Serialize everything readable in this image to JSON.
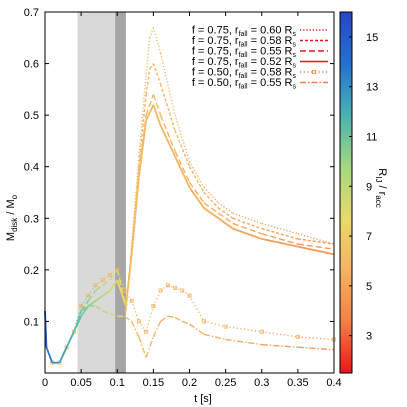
{
  "chart_data": {
    "type": "line",
    "xlabel": "t [s]",
    "ylabel": "M_disk / M_o",
    "xlim": [
      0,
      0.4
    ],
    "ylim": [
      0,
      0.7
    ],
    "xticks": [
      "0",
      "0.05",
      "0.1",
      "0.15",
      "0.2",
      "0.25",
      "0.3",
      "0.35",
      "0.4"
    ],
    "yticks": [
      "0.1",
      "0.2",
      "0.3",
      "0.4",
      "0.5",
      "0.6",
      "0.7"
    ],
    "grid": false,
    "legend_position": "top-right",
    "shaded_regions": [
      {
        "x": [
          0.045,
          0.097
        ],
        "color": "#d9d9d9"
      },
      {
        "x": [
          0.097,
          0.112
        ],
        "color": "#a6a6a6"
      }
    ],
    "colorbar": {
      "label": "R_IJ / r_acc",
      "ticks": [
        "3",
        "5",
        "7",
        "9",
        "11",
        "13",
        "15"
      ],
      "range": [
        1.5,
        16
      ],
      "colors": [
        "#e8171a",
        "#f38045",
        "#f5b364",
        "#e8da6a",
        "#a3d880",
        "#49b2b2",
        "#2371d0",
        "#2a45c7"
      ]
    },
    "series": [
      {
        "name": "f = 0.75, r_fall = 0.60 R_s",
        "legend_f": "f = 0.75, r",
        "legend_sub": "fall",
        "legend_r": " = 0.60 R",
        "legend_end": "s",
        "style": "dotted",
        "legend_color": "#e8171a",
        "x": [
          0.112,
          0.12,
          0.13,
          0.14,
          0.145,
          0.15,
          0.16,
          0.18,
          0.2,
          0.22,
          0.24,
          0.26,
          0.3,
          0.35,
          0.4
        ],
        "y": [
          0.12,
          0.25,
          0.42,
          0.58,
          0.65,
          0.67,
          0.62,
          0.5,
          0.41,
          0.36,
          0.33,
          0.31,
          0.29,
          0.27,
          0.25
        ]
      },
      {
        "name": "f = 0.75, r_fall = 0.58 R_s",
        "legend_f": "f = 0.75, r",
        "legend_sub": "fall",
        "legend_r": " = 0.58 R",
        "legend_end": "s",
        "style": "dashed-fine",
        "legend_color": "#e8171a",
        "x": [
          0.112,
          0.12,
          0.13,
          0.14,
          0.145,
          0.15,
          0.16,
          0.18,
          0.2,
          0.22,
          0.24,
          0.26,
          0.3,
          0.35,
          0.4
        ],
        "y": [
          0.12,
          0.24,
          0.4,
          0.54,
          0.59,
          0.6,
          0.56,
          0.47,
          0.4,
          0.35,
          0.32,
          0.3,
          0.28,
          0.26,
          0.25
        ]
      },
      {
        "name": "f = 0.75, r_fall = 0.55 R_s",
        "legend_f": "f = 0.75, r",
        "legend_sub": "fall",
        "legend_r": " = 0.55 R",
        "legend_end": "s",
        "style": "dashed",
        "legend_color": "#e8171a",
        "x": [
          0.0,
          0.002,
          0.01,
          0.02,
          0.03,
          0.04,
          0.05,
          0.06,
          0.07,
          0.08,
          0.09,
          0.1,
          0.112,
          0.12,
          0.13,
          0.14,
          0.15,
          0.16,
          0.18,
          0.2,
          0.22,
          0.24,
          0.26,
          0.3,
          0.35,
          0.4
        ],
        "y": [
          0.12,
          0.05,
          0.02,
          0.02,
          0.05,
          0.08,
          0.12,
          0.14,
          0.16,
          0.17,
          0.18,
          0.2,
          0.13,
          0.24,
          0.39,
          0.5,
          0.54,
          0.5,
          0.43,
          0.37,
          0.33,
          0.31,
          0.29,
          0.27,
          0.25,
          0.24
        ]
      },
      {
        "name": "f = 0.75, r_fall = 0.52 R_s",
        "legend_f": "f = 0.75, r",
        "legend_sub": "fall",
        "legend_r": " = 0.52 R",
        "legend_end": "s",
        "style": "solid",
        "legend_color": "#e8171a",
        "x": [
          0.0,
          0.002,
          0.01,
          0.02,
          0.03,
          0.04,
          0.05,
          0.06,
          0.07,
          0.08,
          0.09,
          0.1,
          0.112,
          0.12,
          0.13,
          0.14,
          0.15,
          0.16,
          0.18,
          0.2,
          0.22,
          0.24,
          0.26,
          0.3,
          0.35,
          0.4
        ],
        "y": [
          0.12,
          0.05,
          0.02,
          0.02,
          0.05,
          0.08,
          0.11,
          0.13,
          0.14,
          0.15,
          0.16,
          0.18,
          0.13,
          0.23,
          0.38,
          0.49,
          0.52,
          0.48,
          0.42,
          0.36,
          0.32,
          0.3,
          0.28,
          0.26,
          0.245,
          0.23
        ]
      },
      {
        "name": "f = 0.50, r_fall = 0.58 R_s",
        "legend_f": "f = 0.50, r",
        "legend_sub": "fall",
        "legend_r": " = 0.58 R",
        "legend_end": "s",
        "style": "dotted-square",
        "legend_color": "#f38045",
        "x": [
          0.0,
          0.002,
          0.01,
          0.02,
          0.03,
          0.04,
          0.05,
          0.06,
          0.07,
          0.08,
          0.09,
          0.1,
          0.11,
          0.12,
          0.13,
          0.14,
          0.15,
          0.16,
          0.17,
          0.18,
          0.19,
          0.2,
          0.22,
          0.25,
          0.3,
          0.35,
          0.4
        ],
        "y": [
          0.12,
          0.05,
          0.02,
          0.02,
          0.05,
          0.08,
          0.13,
          0.15,
          0.17,
          0.18,
          0.19,
          0.2,
          0.16,
          0.14,
          0.1,
          0.08,
          0.13,
          0.16,
          0.17,
          0.165,
          0.16,
          0.15,
          0.1,
          0.09,
          0.08,
          0.07,
          0.065
        ]
      },
      {
        "name": "f = 0.50, r_fall = 0.55 R_s",
        "legend_f": "f = 0.50, r",
        "legend_sub": "fall",
        "legend_r": " = 0.55 R",
        "legend_end": "s",
        "style": "dash-dot",
        "legend_color": "#f38045",
        "x": [
          0.0,
          0.002,
          0.01,
          0.02,
          0.03,
          0.04,
          0.05,
          0.06,
          0.07,
          0.08,
          0.09,
          0.1,
          0.11,
          0.12,
          0.13,
          0.14,
          0.15,
          0.16,
          0.17,
          0.18,
          0.19,
          0.2,
          0.22,
          0.25,
          0.3,
          0.35,
          0.4
        ],
        "y": [
          0.12,
          0.05,
          0.02,
          0.02,
          0.05,
          0.08,
          0.12,
          0.13,
          0.13,
          0.12,
          0.115,
          0.11,
          0.11,
          0.1,
          0.07,
          0.03,
          0.07,
          0.1,
          0.11,
          0.108,
          0.1,
          0.095,
          0.075,
          0.065,
          0.055,
          0.05,
          0.045
        ]
      }
    ]
  }
}
